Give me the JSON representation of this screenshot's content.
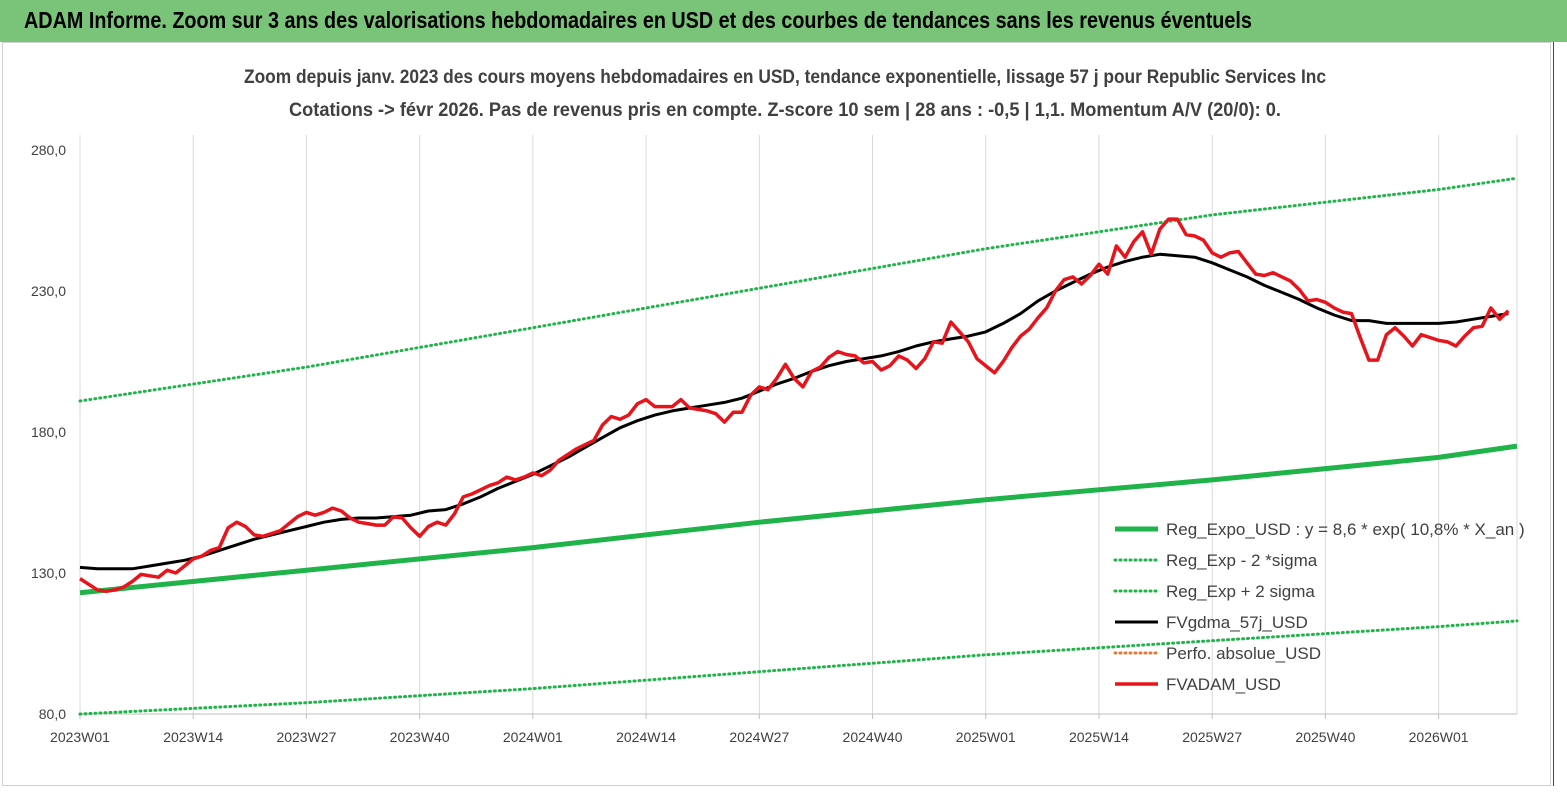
{
  "banner": {
    "title": "ADAM Informe. Zoom sur 3 ans des valorisations hebdomadaires en USD et des courbes de tendances sans les revenus éventuels"
  },
  "colors": {
    "banner_bg": "#7ac47a",
    "reg_expo": "#1fb34a",
    "reg_band": "#1fb34a",
    "fvgdma": "#000000",
    "perfo": "#e07a3a",
    "fvadam": "#e8141c",
    "grid": "#d9d9d9"
  },
  "chart_data": {
    "type": "line",
    "title": "Zoom depuis janv. 2023 des cours moyens hebdomadaires en USD, tendance exponentielle, lissage 57 j pour Republic Services Inc",
    "subtitle": "Cotations -> févr 2026. Pas de revenus pris en compte. Z-score 10 sem  | 28 ans : -0,5  | 1,1. Momentum A/V (20/0): 0.",
    "xlabel": "",
    "ylabel": "",
    "ylim": [
      80,
      290
    ],
    "y_ticks": [
      "80,0",
      "130,0",
      "180,0",
      "230,0",
      "280,0"
    ],
    "y_tick_values": [
      80,
      130,
      180,
      230,
      280
    ],
    "x_tick_labels": [
      "2023W01",
      "2023W14",
      "2023W27",
      "2023W40",
      "2024W01",
      "2024W14",
      "2024W27",
      "2024W40",
      "2025W01",
      "2025W14",
      "2025W27",
      "2025W40",
      "2026W01"
    ],
    "x_tick_weeks": [
      0,
      13,
      26,
      39,
      52,
      65,
      78,
      91,
      104,
      117,
      130,
      143,
      156
    ],
    "x_range_weeks": [
      0,
      165
    ],
    "grid": "vertical",
    "legend_position": "bottom-right",
    "legend": [
      {
        "key": "reg_expo",
        "label": "Reg_Expo_USD : y = 8,6  * exp( 10,8% *  X_an )",
        "style": "thick"
      },
      {
        "key": "reg_minus",
        "label": "Reg_Exp - 2 *sigma",
        "style": "dotted"
      },
      {
        "key": "reg_plus",
        "label": "Reg_Exp + 2 sigma",
        "style": "dotted"
      },
      {
        "key": "fvgdma",
        "label": "FVgdma_57j_USD",
        "style": "solid"
      },
      {
        "key": "perfo",
        "label": "Perfo. absolue_USD",
        "style": "dotted-orange"
      },
      {
        "key": "fvadam",
        "label": "FVADAM_USD",
        "style": "solid-red"
      }
    ],
    "series": [
      {
        "key": "reg_expo",
        "name": "Reg_Expo_USD : y = 8,6  * exp( 10,8% *  X_an )",
        "x": [
          0,
          26,
          52,
          78,
          104,
          130,
          156,
          165
        ],
        "y": [
          123,
          131,
          139,
          148,
          156,
          163,
          171,
          175
        ]
      },
      {
        "key": "reg_minus",
        "name": "Reg_Exp - 2 *sigma",
        "x": [
          0,
          26,
          52,
          78,
          104,
          130,
          156,
          165
        ],
        "y": [
          80,
          84,
          89,
          95,
          101,
          106,
          111,
          113
        ]
      },
      {
        "key": "reg_plus",
        "name": "Reg_Exp + 2 sigma",
        "x": [
          0,
          26,
          52,
          78,
          104,
          130,
          156,
          165
        ],
        "y": [
          191,
          203,
          217,
          231,
          245,
          257,
          266,
          270
        ]
      },
      {
        "key": "fvgdma",
        "name": "FVgdma_57j_USD",
        "x": [
          0,
          2,
          4,
          6,
          8,
          10,
          12,
          14,
          16,
          18,
          20,
          22,
          24,
          26,
          28,
          30,
          32,
          34,
          36,
          38,
          40,
          42,
          44,
          46,
          48,
          50,
          52,
          54,
          56,
          58,
          60,
          62,
          64,
          66,
          68,
          70,
          72,
          74,
          76,
          78,
          80,
          82,
          84,
          86,
          88,
          90,
          92,
          94,
          96,
          98,
          100,
          102,
          104,
          106,
          108,
          110,
          112,
          114,
          116,
          118,
          120,
          122,
          124,
          126,
          128,
          130,
          132,
          134,
          136,
          138,
          140,
          142,
          144,
          146,
          148,
          150,
          152,
          154,
          156,
          158,
          160,
          162,
          164
        ],
        "y": [
          132,
          131.5,
          131.5,
          131.5,
          132.5,
          133.5,
          134.5,
          136,
          138,
          140,
          142,
          143.5,
          145,
          146.5,
          148,
          149,
          149.5,
          149.5,
          150,
          150.5,
          152,
          152.5,
          154.5,
          157,
          160,
          162.5,
          165,
          168,
          171,
          174.5,
          178,
          181.5,
          184,
          186,
          187.5,
          188.5,
          189.5,
          190.5,
          192,
          194.5,
          197,
          199,
          201.5,
          203.5,
          205,
          206,
          207,
          208.5,
          210.5,
          212,
          213,
          214,
          215.5,
          218.5,
          222,
          226.5,
          230,
          233,
          236,
          238.5,
          240.5,
          242,
          243,
          242.5,
          242,
          240,
          237.5,
          235,
          232,
          229.5,
          227,
          224,
          221.5,
          219.5,
          219.5,
          218.5,
          218.5,
          218.5,
          218.5,
          219,
          220,
          221,
          222
        ]
      },
      {
        "key": "fvadam",
        "name": "FVADAM_USD",
        "x": [
          0,
          1,
          2,
          3,
          4,
          5,
          6,
          7,
          8,
          9,
          10,
          11,
          12,
          13,
          14,
          15,
          16,
          17,
          18,
          19,
          20,
          21,
          22,
          23,
          24,
          25,
          26,
          27,
          28,
          29,
          30,
          31,
          32,
          33,
          34,
          35,
          36,
          37,
          38,
          39,
          40,
          41,
          42,
          43,
          44,
          45,
          46,
          47,
          48,
          49,
          50,
          51,
          52,
          53,
          54,
          55,
          56,
          57,
          58,
          59,
          60,
          61,
          62,
          63,
          64,
          65,
          66,
          67,
          68,
          69,
          70,
          71,
          72,
          73,
          74,
          75,
          76,
          77,
          78,
          79,
          80,
          81,
          82,
          83,
          84,
          85,
          86,
          87,
          88,
          89,
          90,
          91,
          92,
          93,
          94,
          95,
          96,
          97,
          98,
          99,
          100,
          101,
          102,
          103,
          104,
          105,
          106,
          107,
          108,
          109,
          110,
          111,
          112,
          113,
          114,
          115,
          116,
          117,
          118,
          119,
          120,
          121,
          122,
          123,
          124,
          125,
          126,
          127,
          128,
          129,
          130,
          131,
          132,
          133,
          134,
          135,
          136,
          137,
          138,
          139,
          140,
          141,
          142,
          143,
          144,
          145,
          146,
          147,
          148,
          149,
          150,
          151,
          152,
          153,
          154,
          155,
          156,
          157,
          158,
          159,
          160,
          161,
          162,
          163,
          164
        ],
        "y": [
          128,
          126,
          124,
          123.5,
          124,
          125,
          127,
          129.5,
          129,
          128.5,
          131,
          130,
          132.5,
          135,
          136,
          138,
          139,
          146,
          148,
          146.5,
          143.5,
          143,
          144,
          145,
          147.5,
          150,
          151.5,
          150.5,
          151.5,
          153,
          152,
          149.5,
          148,
          147.5,
          147,
          147,
          150,
          149.5,
          146,
          143,
          146.5,
          148,
          147,
          151,
          157,
          158,
          159.5,
          161,
          162,
          164,
          163,
          164,
          165.5,
          164.5,
          166.5,
          170,
          172,
          174,
          175.5,
          177,
          182.5,
          185.5,
          184.5,
          186,
          190,
          191.5,
          189,
          189,
          189,
          191.5,
          188.5,
          188,
          187.5,
          186.5,
          183.5,
          187,
          187,
          193,
          196,
          195,
          199,
          204,
          199,
          196,
          201.5,
          203,
          206.5,
          208.5,
          207.5,
          207,
          204.5,
          205,
          202,
          203.5,
          207,
          205.5,
          202.5,
          206,
          212,
          211.5,
          219,
          215.5,
          212,
          206,
          203.5,
          201,
          205,
          210,
          214,
          216.5,
          220.5,
          224,
          230,
          234,
          235,
          232.5,
          235.5,
          239.5,
          236,
          246,
          242,
          247.5,
          251,
          243,
          252,
          255.5,
          255.5,
          250,
          249.5,
          248,
          243.5,
          242,
          243.5,
          244,
          240,
          236,
          235.5,
          236.5,
          235,
          233.5,
          230.5,
          226.5,
          227,
          226,
          224,
          222.5,
          222,
          213.5,
          205.5,
          205.5,
          214.5,
          217,
          214,
          210.5,
          214.5,
          213.5,
          212.5,
          212,
          210.5,
          214,
          217,
          217.5,
          224,
          220,
          223
        ]
      }
    ]
  }
}
